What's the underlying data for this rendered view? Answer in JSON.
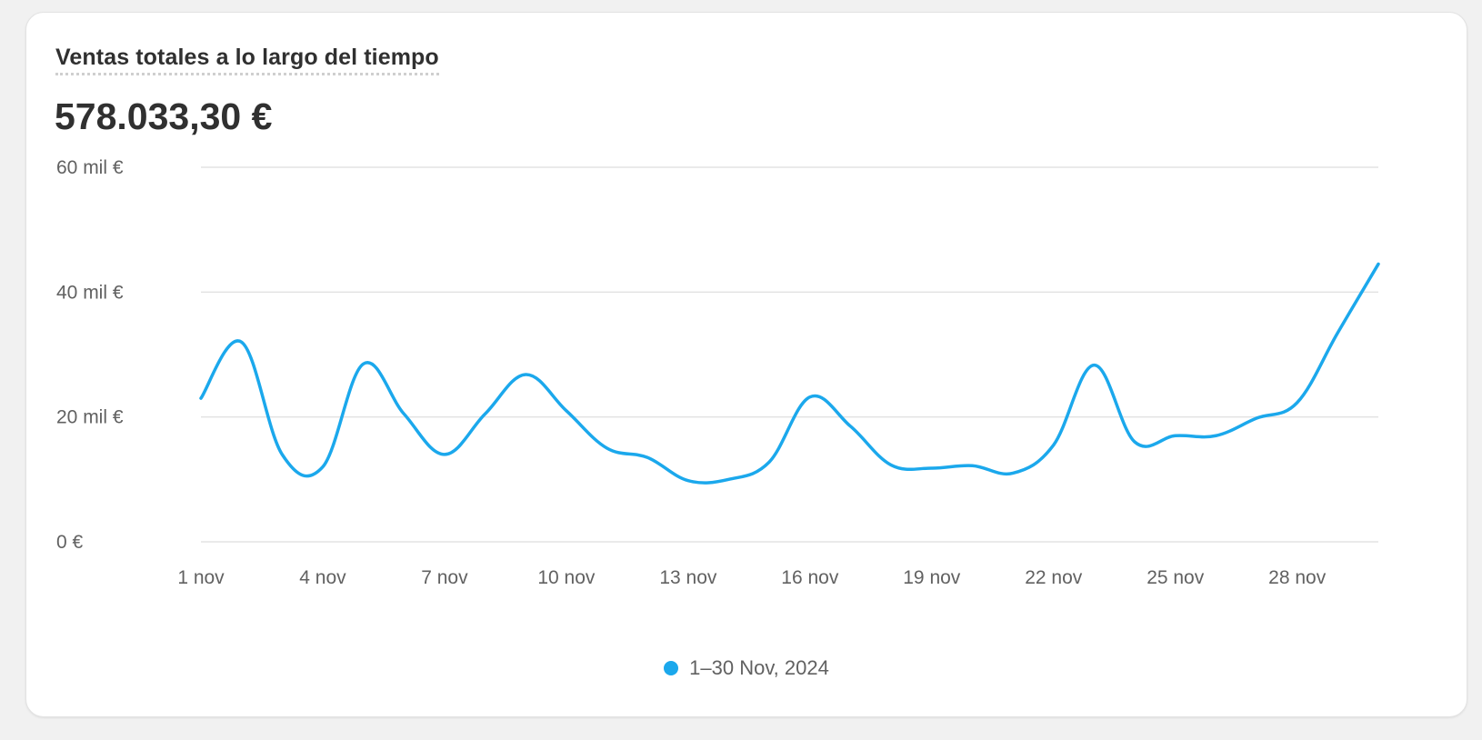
{
  "card": {
    "title": "Ventas totales a lo largo del tiempo",
    "total": "578.033,30 €"
  },
  "colors": {
    "series": "#1ba8ec",
    "grid": "#e3e3e3",
    "axis_text": "#616161"
  },
  "chart_data": {
    "type": "line",
    "title": "Ventas totales a lo largo del tiempo",
    "xlabel": "",
    "ylabel": "",
    "ylim": [
      0,
      60000
    ],
    "y_ticks": [
      {
        "value": 0,
        "label": "0 €"
      },
      {
        "value": 20000,
        "label": "20 mil €"
      },
      {
        "value": 40000,
        "label": "40 mil €"
      },
      {
        "value": 60000,
        "label": "60 mil €"
      }
    ],
    "x": [
      1,
      2,
      3,
      4,
      5,
      6,
      7,
      8,
      9,
      10,
      11,
      12,
      13,
      14,
      15,
      16,
      17,
      18,
      19,
      20,
      21,
      22,
      23,
      24,
      25,
      26,
      27,
      28,
      29,
      30
    ],
    "x_ticks": [
      {
        "value": 1,
        "label": "1 nov"
      },
      {
        "value": 4,
        "label": "4 nov"
      },
      {
        "value": 7,
        "label": "7 nov"
      },
      {
        "value": 10,
        "label": "10 nov"
      },
      {
        "value": 13,
        "label": "13 nov"
      },
      {
        "value": 16,
        "label": "16 nov"
      },
      {
        "value": 19,
        "label": "19 nov"
      },
      {
        "value": 22,
        "label": "22 nov"
      },
      {
        "value": 25,
        "label": "25 nov"
      },
      {
        "value": 28,
        "label": "28 nov"
      }
    ],
    "grid": true,
    "legend_position": "bottom",
    "series": [
      {
        "name": "1–30 Nov, 2024",
        "values": [
          23000,
          32000,
          14000,
          12000,
          28500,
          20500,
          14000,
          20500,
          26800,
          21000,
          15000,
          13500,
          9800,
          10000,
          12800,
          23200,
          18500,
          12300,
          11800,
          12200,
          11000,
          15500,
          28300,
          16000,
          17000,
          17000,
          19800,
          22300,
          33500,
          44500
        ]
      }
    ]
  }
}
